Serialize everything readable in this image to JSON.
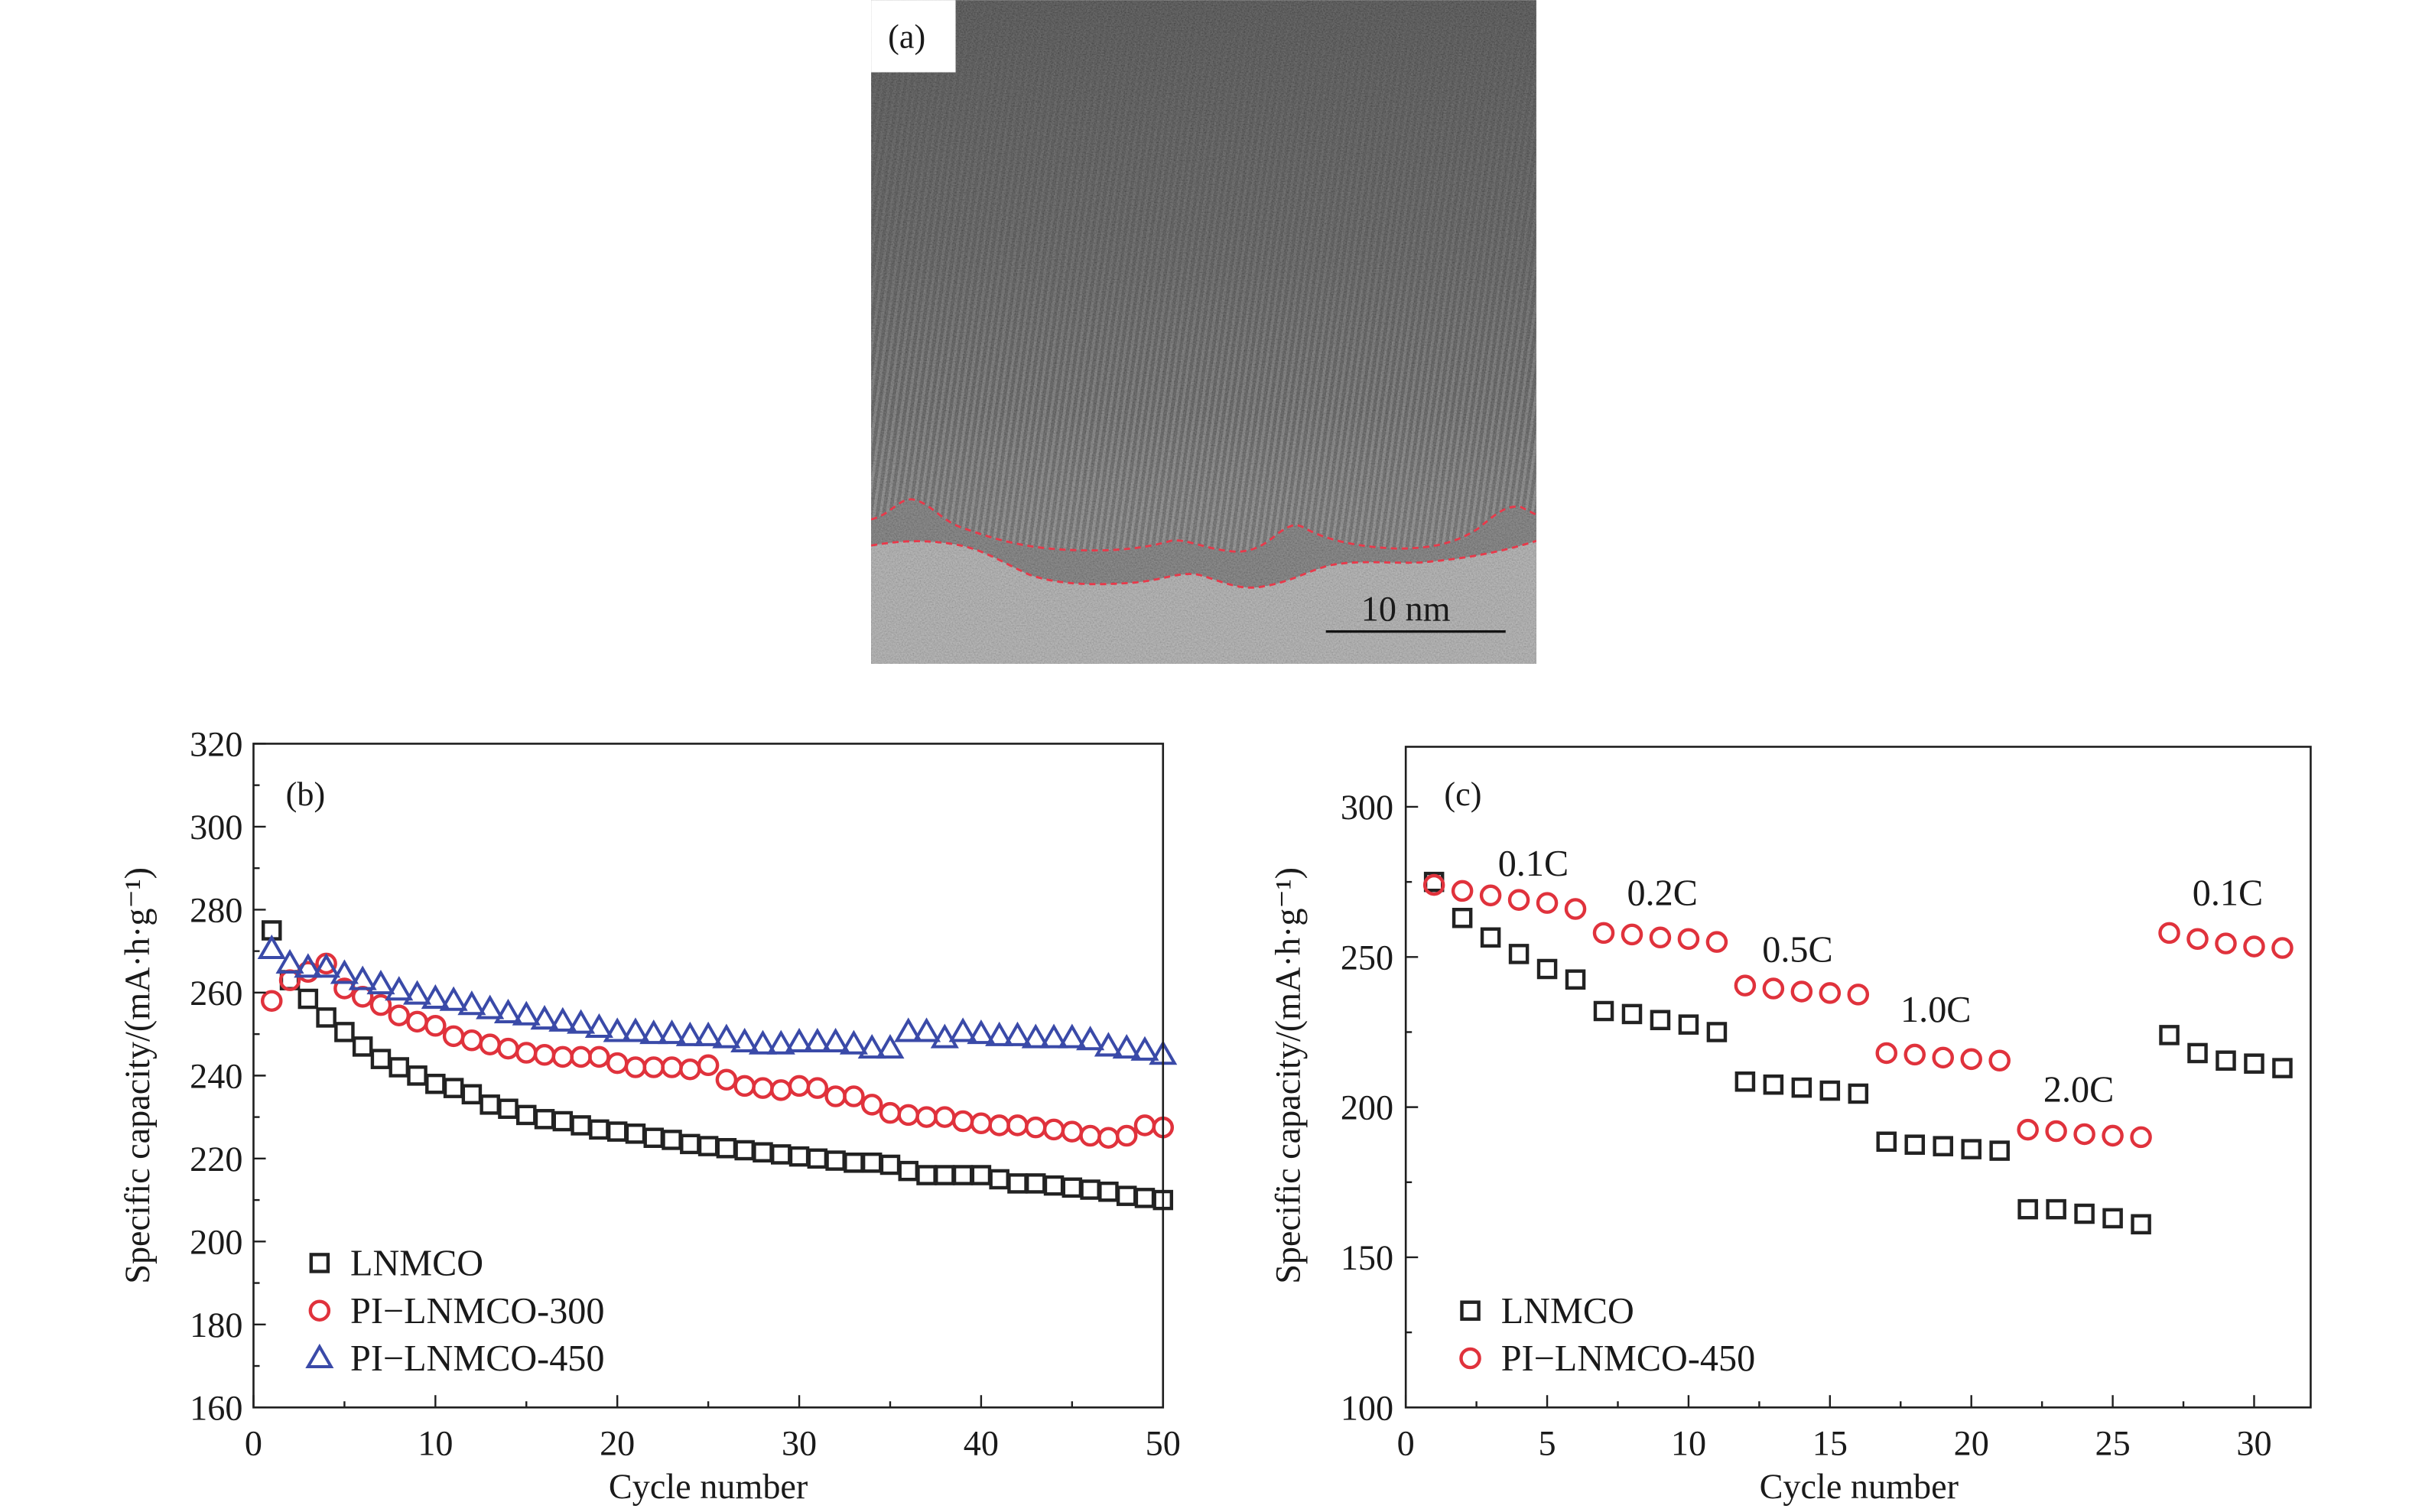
{
  "panel_a": {
    "label": "(a)",
    "scale_bar": "10 nm",
    "boundary_color": "#e8394a"
  },
  "chart_data": [
    {
      "panel_label": "(b)",
      "type": "scatter",
      "xlabel": "Cycle number",
      "ylabel": "Specific capacity/(mA·h·g⁻¹)",
      "xlim": [
        0,
        50
      ],
      "ylim": [
        160,
        320
      ],
      "xticks": [
        0,
        10,
        20,
        30,
        40,
        50
      ],
      "yticks": [
        160,
        180,
        200,
        220,
        240,
        260,
        280,
        300,
        320
      ],
      "grid": false,
      "legend": "bottom-left",
      "x": [
        1,
        2,
        3,
        4,
        5,
        6,
        7,
        8,
        9,
        10,
        11,
        12,
        13,
        14,
        15,
        16,
        17,
        18,
        19,
        20,
        21,
        22,
        23,
        24,
        25,
        26,
        27,
        28,
        29,
        30,
        31,
        32,
        33,
        34,
        35,
        36,
        37,
        38,
        39,
        40,
        41,
        42,
        43,
        44,
        45,
        46,
        47,
        48,
        49,
        50
      ],
      "series": [
        {
          "name": "LNMCO",
          "marker": "square",
          "color": "#222222",
          "values": [
            275,
            263,
            258.5,
            254,
            250.5,
            247,
            244,
            242,
            240,
            238,
            237,
            235.5,
            233,
            232,
            230.5,
            229.5,
            229,
            228,
            227,
            226.5,
            226,
            225,
            224.5,
            223.5,
            223,
            222.5,
            222,
            221.5,
            221,
            220.5,
            220,
            219.5,
            219,
            219,
            218.5,
            217,
            216,
            216,
            216,
            216,
            215,
            214,
            214,
            213.5,
            213,
            212.5,
            212,
            211,
            210.5,
            210
          ]
        },
        {
          "name": "PI−LNMCO-300",
          "marker": "circle",
          "color": "#e0323c",
          "values": [
            258,
            263,
            265,
            267,
            261,
            259,
            257,
            254.5,
            253,
            252,
            249.5,
            248.5,
            247.5,
            246.5,
            245.5,
            245,
            244.5,
            244.5,
            244.5,
            243,
            242,
            242,
            242,
            241.5,
            242.5,
            239,
            237.5,
            237,
            236.5,
            237.5,
            237,
            235,
            235,
            233,
            231,
            230.5,
            230,
            230,
            229,
            228.5,
            228,
            228,
            227.5,
            227,
            226.5,
            225.5,
            225,
            225.5,
            228,
            227.5
          ]
        },
        {
          "name": "PI−LNMCO-450",
          "marker": "triangle",
          "color": "#3a4aa8",
          "values": [
            270.5,
            267,
            266,
            266,
            264.5,
            263,
            262,
            260.5,
            259.5,
            258.5,
            258,
            257,
            256,
            255,
            254.5,
            253.5,
            253,
            252.5,
            251.5,
            250.5,
            250.5,
            250,
            250,
            249.5,
            249.5,
            249,
            248,
            247.5,
            247.5,
            248,
            248,
            248,
            247.5,
            246.5,
            246.5,
            250.5,
            250.5,
            249,
            250.5,
            250,
            249.5,
            249.5,
            249,
            249,
            249,
            248.5,
            247,
            246.5,
            246,
            245
          ]
        }
      ]
    },
    {
      "panel_label": "(c)",
      "type": "scatter",
      "xlabel": "Cycle number",
      "ylabel": "Specific capacity/(mA·h·g⁻¹)",
      "xlim": [
        0,
        32
      ],
      "ylim": [
        100,
        320
      ],
      "xticks": [
        0,
        5,
        10,
        15,
        20,
        25,
        30
      ],
      "yticks": [
        100,
        150,
        200,
        250,
        300
      ],
      "grid": false,
      "legend": "bottom-left",
      "annotations": [
        "0.1C",
        "0.2C",
        "0.5C",
        "1.0C",
        "2.0C",
        "0.1C"
      ],
      "x": [
        1,
        2,
        3,
        4,
        5,
        6,
        7,
        8,
        9,
        10,
        11,
        12,
        13,
        14,
        15,
        16,
        17,
        18,
        19,
        20,
        21,
        22,
        23,
        24,
        25,
        26,
        27,
        28,
        29,
        30,
        31
      ],
      "series": [
        {
          "name": "LNMCO",
          "marker": "square",
          "color": "#222222",
          "values": [
            275,
            263,
            256.5,
            251,
            246,
            242.5,
            232,
            231,
            229,
            227.5,
            225,
            208.5,
            207.5,
            206.5,
            205.5,
            204.5,
            188.5,
            187.5,
            187,
            186,
            185.5,
            166,
            166,
            164.5,
            163,
            161,
            224,
            218,
            215.5,
            214.5,
            213
          ]
        },
        {
          "name": "PI−LNMCO-450",
          "marker": "circle",
          "color": "#e0323c",
          "values": [
            274,
            272,
            270.5,
            269,
            268,
            266,
            258,
            257.5,
            256.5,
            256,
            255,
            240.5,
            239.5,
            238.5,
            238,
            237.5,
            218,
            217.5,
            216.5,
            216,
            215.5,
            192.5,
            192,
            191,
            190.5,
            190,
            258,
            256,
            254.5,
            253.5,
            253
          ]
        }
      ]
    }
  ]
}
